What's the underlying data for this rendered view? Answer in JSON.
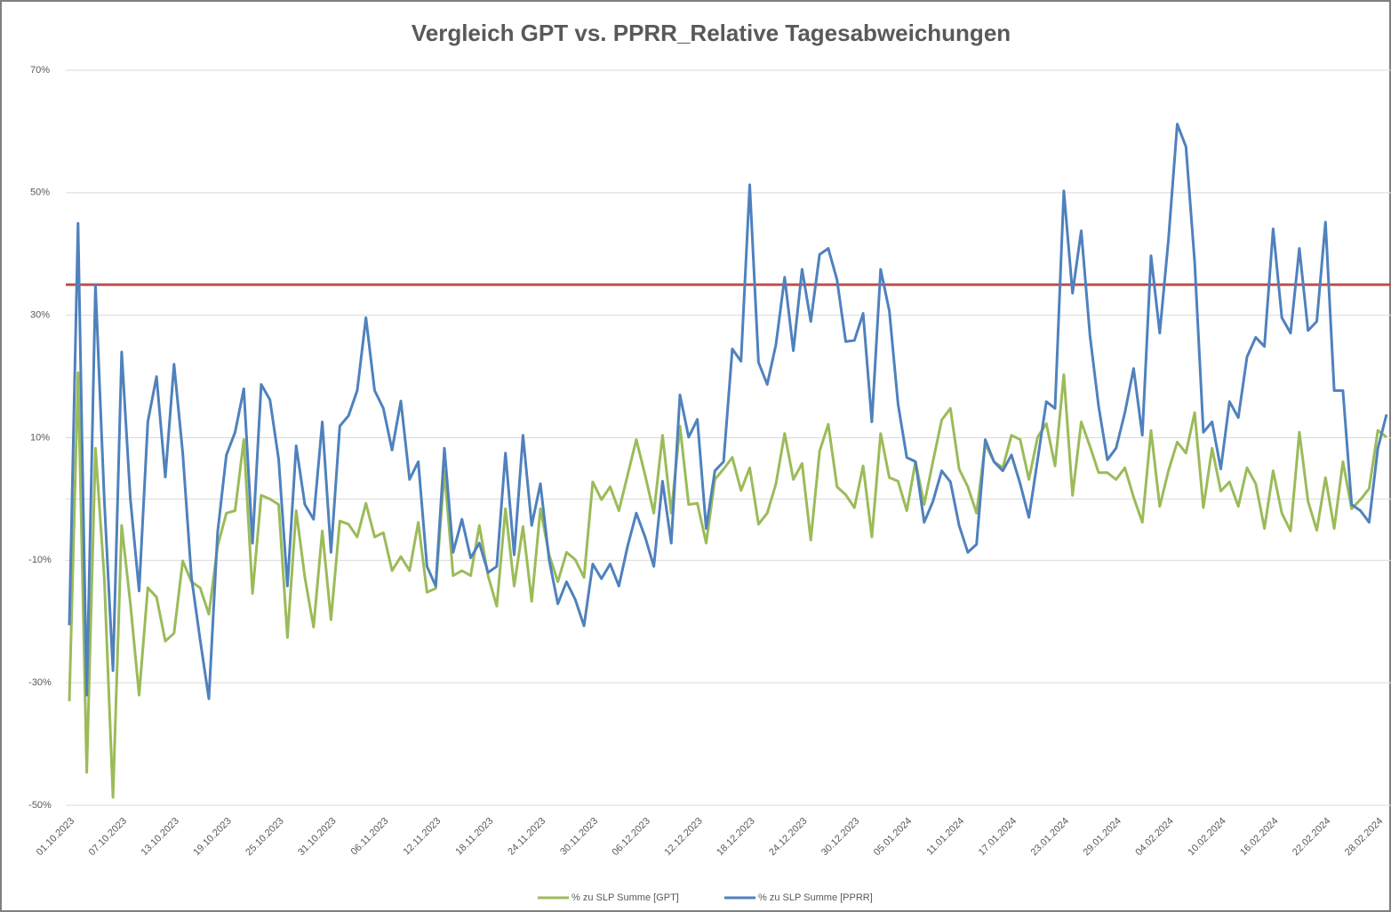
{
  "chart_data": {
    "type": "line",
    "title": "Vergleich GPT vs. PPRR_Relative Tagesabweichungen",
    "categories": [
      "01.10.2023",
      null,
      null,
      null,
      null,
      null,
      "07.10.2023",
      null,
      null,
      null,
      null,
      null,
      "13.10.2023",
      null,
      null,
      null,
      null,
      null,
      "19.10.2023",
      null,
      null,
      null,
      null,
      null,
      "25.10.2023",
      null,
      null,
      null,
      null,
      null,
      "31.10.2023",
      null,
      null,
      null,
      null,
      null,
      "06.11.2023",
      null,
      null,
      null,
      null,
      null,
      "12.11.2023",
      null,
      null,
      null,
      null,
      null,
      "18.11.2023",
      null,
      null,
      null,
      null,
      null,
      "24.11.2023",
      null,
      null,
      null,
      null,
      null,
      "30.11.2023",
      null,
      null,
      null,
      null,
      null,
      "06.12.2023",
      null,
      null,
      null,
      null,
      null,
      "12.12.2023",
      null,
      null,
      null,
      null,
      null,
      "18.12.2023",
      null,
      null,
      null,
      null,
      null,
      "24.12.2023",
      null,
      null,
      null,
      null,
      null,
      "30.12.2023",
      null,
      null,
      null,
      null,
      null,
      "05.01.2024",
      null,
      null,
      null,
      null,
      null,
      "11.01.2024",
      null,
      null,
      null,
      null,
      null,
      "17.01.2024",
      null,
      null,
      null,
      null,
      null,
      "23.01.2024",
      null,
      null,
      null,
      null,
      null,
      "29.01.2024",
      null,
      null,
      null,
      null,
      null,
      "04.02.2024",
      null,
      null,
      null,
      null,
      null,
      "10.02.2024",
      null,
      null,
      null,
      null,
      null,
      "16.02.2024",
      null,
      null,
      null,
      null,
      null,
      "22.02.2024",
      null,
      null,
      null,
      null,
      null,
      "28.02.2024",
      null
    ],
    "series": [
      {
        "name": "% zu SLP Summe [GPT]",
        "color": "#9bbb59",
        "values": [
          -33,
          20.6,
          -44.6,
          8.3,
          -12.8,
          -48.7,
          -4.3,
          -17.1,
          -32,
          -14.5,
          -16,
          -23.2,
          -21.9,
          -10.1,
          -13.5,
          -14.5,
          -18.8,
          -7.7,
          -2.3,
          -1.9,
          9.7,
          -15.4,
          0.6,
          0,
          -0.9,
          -22.6,
          -1.9,
          -12.8,
          -20.9,
          -5.2,
          -19.7,
          -3.6,
          -4.1,
          -6.2,
          -0.7,
          -6.2,
          -5.5,
          -11.7,
          -9.4,
          -11.7,
          -3.8,
          -15.2,
          -14.6,
          4.6,
          -12.5,
          -11.7,
          -12.5,
          -4.3,
          -12.5,
          -17.5,
          -1.6,
          -14.2,
          -4.5,
          -16.7,
          -1.6,
          -9.1,
          -13.5,
          -8.7,
          -9.9,
          -12.8,
          2.8,
          -0.1,
          2,
          -1.9,
          3.9,
          9.7,
          3.9,
          -2.3,
          10.4,
          -2.3,
          11.9,
          -0.9,
          -0.7,
          -7.2,
          3.2,
          4.9,
          6.8,
          1.4,
          5.1,
          -4.1,
          -2.3,
          2.5,
          10.7,
          3.2,
          5.8,
          -6.7,
          7.8,
          12.2,
          2,
          0.7,
          -1.4,
          5.4,
          -6.2,
          10.7,
          3.5,
          2.9,
          -1.9,
          6.1,
          -0.9,
          6.1,
          12.9,
          14.8,
          4.9,
          2,
          -2.3,
          9,
          6.1,
          5.1,
          10.4,
          9.7,
          3.2,
          10.1,
          12.3,
          5.4,
          20.3,
          0.6,
          12.6,
          8.6,
          4.3,
          4.3,
          3.2,
          5.1,
          0.3,
          -3.8,
          11.2,
          -1.2,
          4.6,
          9.3,
          7.5,
          14.1,
          -1.4,
          8.3,
          1.3,
          2.8,
          -1.2,
          5.1,
          2.5,
          -4.8,
          4.6,
          -2.3,
          -5.2,
          10.9,
          -0.4,
          -5.1,
          3.5,
          -4.8,
          6.1,
          -1.6,
          -0.1,
          1.7,
          11.2,
          10.1
        ]
      },
      {
        "name": "% zu SLP Summe [PPRR]",
        "color": "#4f81bd",
        "values": [
          -20.6,
          45,
          -32,
          35,
          0,
          -28,
          24,
          0,
          -15,
          12.6,
          20,
          3.6,
          22,
          7.5,
          -12.8,
          -23,
          -32.6,
          -5.5,
          7.2,
          10.9,
          18,
          -7.2,
          18.7,
          16.2,
          6.5,
          -14.2,
          8.7,
          -0.9,
          -3.3,
          12.6,
          -8.7,
          11.9,
          13.6,
          17.7,
          29.6,
          17.7,
          14.8,
          8,
          16,
          3.2,
          6.1,
          -11,
          -14.2,
          8.3,
          -8.7,
          -3.3,
          -9.6,
          -7.2,
          -12,
          -11,
          7.5,
          -9.1,
          10.4,
          -4.3,
          2.5,
          -9.9,
          -17.1,
          -13.5,
          -16.4,
          -20.7,
          -10.6,
          -13,
          -10.6,
          -14.2,
          -7.7,
          -2.3,
          -6.2,
          -11,
          2.9,
          -7.2,
          17,
          10.1,
          13,
          -4.8,
          4.6,
          6.1,
          24.5,
          22.5,
          51.3,
          22.3,
          18.7,
          25.2,
          36.2,
          24.2,
          37.5,
          29,
          39.9,
          40.9,
          35.8,
          25.7,
          25.9,
          30.3,
          12.6,
          37.5,
          30.7,
          15.5,
          6.8,
          6.1,
          -3.8,
          -0.4,
          4.6,
          2.8,
          -4.3,
          -8.7,
          -7.4,
          9.7,
          6.1,
          4.6,
          7.2,
          2.5,
          -3,
          6.4,
          15.9,
          14.8,
          50.3,
          33.6,
          43.8,
          26.7,
          15.1,
          6.4,
          8.3,
          14.1,
          21.3,
          10.4,
          39.7,
          27.1,
          42.3,
          61.2,
          57.5,
          38.7,
          10.9,
          12.6,
          4.9,
          15.9,
          13.3,
          23.2,
          26.4,
          24.9,
          44.1,
          29.6,
          27.1,
          40.9,
          27.5,
          29,
          45.2,
          17.7,
          17.7,
          -0.9,
          -1.9,
          -3.8,
          8.3,
          13.8
        ]
      }
    ],
    "ylim": [
      -50,
      70
    ],
    "yticks": [
      {
        "value": 70,
        "label": "70%"
      },
      {
        "value": 50,
        "label": "50%"
      },
      {
        "value": 30,
        "label": "30%"
      },
      {
        "value": 10,
        "label": "10%"
      },
      {
        "value": -10,
        "label": "-10%"
      },
      {
        "value": -30,
        "label": "-30%"
      },
      {
        "value": -50,
        "label": "-50%"
      }
    ],
    "grid": true,
    "reference_line": {
      "value": 35,
      "color": "#c0504d"
    },
    "legend": "bottom"
  }
}
